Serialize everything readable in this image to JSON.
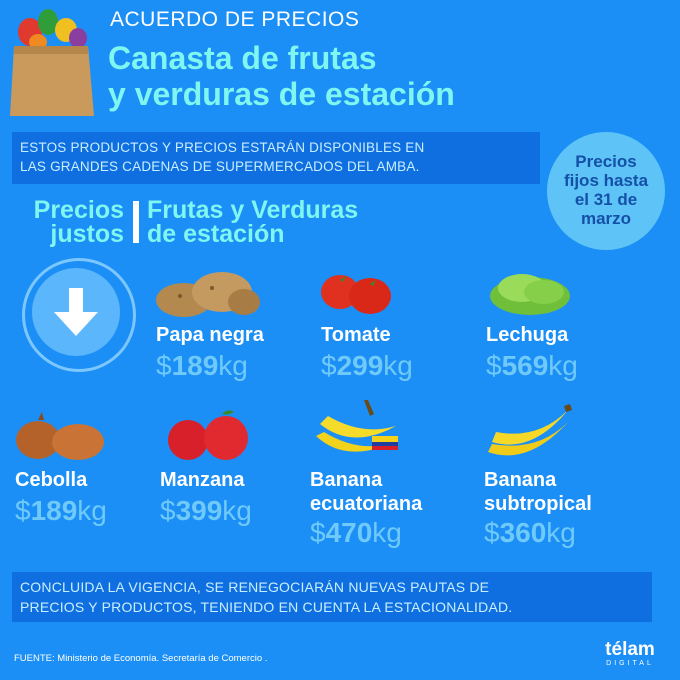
{
  "header": {
    "kicker": "ACUERDO DE PRECIOS",
    "title_line1": "Canasta de frutas",
    "title_line2": "y verduras de estación"
  },
  "notice": {
    "line1": "ESTOS PRODUCTOS Y PRECIOS ESTARÁN DISPONIBLES EN",
    "line2": "LAS GRANDES CADENAS DE SUPERMERCADOS DEL AMBA."
  },
  "badge": {
    "line1": "Precios",
    "line2": "fijos hasta",
    "line3": "el 31 de",
    "line4": "marzo"
  },
  "labels": {
    "left_line1": "Precios",
    "left_line2": "justos",
    "right_line1": "Frutas y Verduras",
    "right_line2": "de estación"
  },
  "products": [
    {
      "name_line1": "Papa negra",
      "name_line2": "",
      "currency": "$",
      "amount": "189",
      "unit": "kg",
      "icon": "potato-icon"
    },
    {
      "name_line1": "Tomate",
      "name_line2": "",
      "currency": "$",
      "amount": "299",
      "unit": "kg",
      "icon": "tomato-icon"
    },
    {
      "name_line1": "Lechuga",
      "name_line2": "",
      "currency": "$",
      "amount": "569",
      "unit": "kg",
      "icon": "lettuce-icon"
    },
    {
      "name_line1": "Cebolla",
      "name_line2": "",
      "currency": "$",
      "amount": "189",
      "unit": "kg",
      "icon": "onion-icon"
    },
    {
      "name_line1": "Manzana",
      "name_line2": "",
      "currency": "$",
      "amount": "399",
      "unit": "kg",
      "icon": "apple-icon"
    },
    {
      "name_line1": "Banana",
      "name_line2": "ecuatoriana",
      "currency": "$",
      "amount": "470",
      "unit": "kg",
      "icon": "banana-icon"
    },
    {
      "name_line1": "Banana",
      "name_line2": "subtropical",
      "currency": "$",
      "amount": "360",
      "unit": "kg",
      "icon": "banana-icon"
    }
  ],
  "footer": {
    "line1": "CONCLUIDA LA VIGENCIA, SE RENEGOCIARÁN NUEVAS PAUTAS DE",
    "line2": "PRECIOS Y PRODUCTOS, TENIENDO EN CUENTA LA ESTACIONALIDAD.",
    "source": "FUENTE: Ministerio de Economía. Secretaría de Comercio ."
  },
  "logo": {
    "name": "télam",
    "sub": "DIGITAL"
  },
  "colors": {
    "background": "#1b8ff5",
    "accent": "#7ff6f0",
    "price": "#6fcafa",
    "box": "#0f6fe0",
    "badge": "#5ec4f7"
  }
}
